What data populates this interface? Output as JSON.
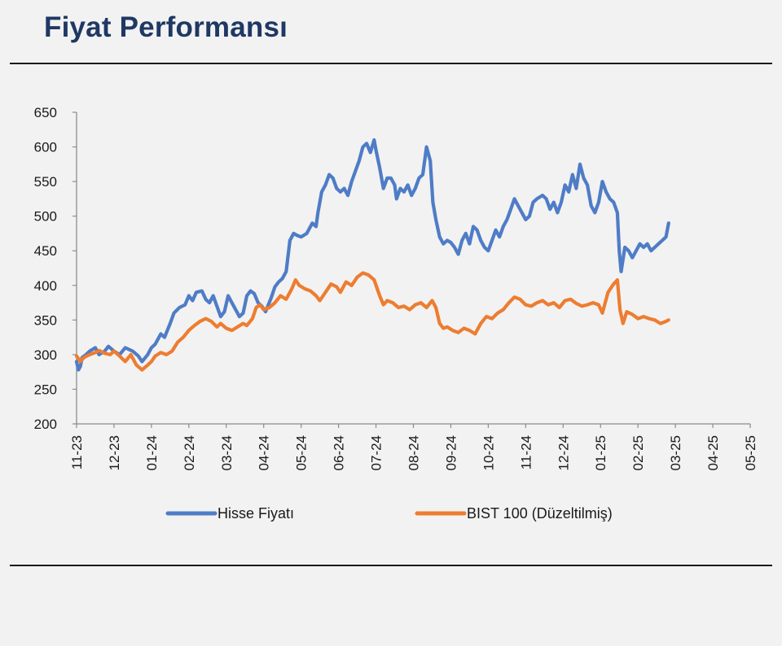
{
  "header": {
    "title": "Fiyat Performansı"
  },
  "chart_data": {
    "type": "line",
    "title": "",
    "xlabel": "",
    "ylabel": "",
    "ylim": [
      200,
      650
    ],
    "yticks": [
      200,
      250,
      300,
      350,
      400,
      450,
      500,
      550,
      600,
      650
    ],
    "xticks": [
      "11-23",
      "12-23",
      "01-24",
      "02-24",
      "03-24",
      "04-24",
      "05-24",
      "06-24",
      "07-24",
      "08-24",
      "09-24",
      "10-24",
      "11-24",
      "12-24",
      "01-25",
      "02-25",
      "03-25",
      "04-25",
      "05-25"
    ],
    "grid": false,
    "legend_position": "bottom",
    "series": [
      {
        "name": "Hisse Fiyatı",
        "color": "#4f7cc6",
        "points": [
          [
            0,
            290
          ],
          [
            0.05,
            278
          ],
          [
            0.1,
            283
          ],
          [
            0.15,
            296
          ],
          [
            0.25,
            300
          ],
          [
            0.35,
            305
          ],
          [
            0.5,
            310
          ],
          [
            0.6,
            300
          ],
          [
            0.75,
            305
          ],
          [
            0.85,
            312
          ],
          [
            1.0,
            305
          ],
          [
            1.15,
            300
          ],
          [
            1.3,
            310
          ],
          [
            1.5,
            305
          ],
          [
            1.65,
            298
          ],
          [
            1.75,
            290
          ],
          [
            1.9,
            300
          ],
          [
            2.0,
            310
          ],
          [
            2.1,
            315
          ],
          [
            2.25,
            330
          ],
          [
            2.35,
            325
          ],
          [
            2.5,
            345
          ],
          [
            2.6,
            360
          ],
          [
            2.75,
            368
          ],
          [
            2.9,
            372
          ],
          [
            3.0,
            385
          ],
          [
            3.1,
            378
          ],
          [
            3.2,
            390
          ],
          [
            3.35,
            392
          ],
          [
            3.45,
            380
          ],
          [
            3.55,
            375
          ],
          [
            3.65,
            385
          ],
          [
            3.75,
            370
          ],
          [
            3.85,
            355
          ],
          [
            3.95,
            362
          ],
          [
            4.05,
            385
          ],
          [
            4.15,
            375
          ],
          [
            4.25,
            365
          ],
          [
            4.35,
            355
          ],
          [
            4.45,
            360
          ],
          [
            4.55,
            385
          ],
          [
            4.65,
            392
          ],
          [
            4.75,
            388
          ],
          [
            4.85,
            375
          ],
          [
            4.95,
            370
          ],
          [
            5.05,
            362
          ],
          [
            5.2,
            382
          ],
          [
            5.3,
            398
          ],
          [
            5.4,
            405
          ],
          [
            5.5,
            410
          ],
          [
            5.6,
            420
          ],
          [
            5.7,
            465
          ],
          [
            5.8,
            475
          ],
          [
            5.9,
            472
          ],
          [
            6.0,
            470
          ],
          [
            6.15,
            475
          ],
          [
            6.3,
            490
          ],
          [
            6.4,
            485
          ],
          [
            6.45,
            505
          ],
          [
            6.55,
            535
          ],
          [
            6.65,
            545
          ],
          [
            6.75,
            560
          ],
          [
            6.85,
            555
          ],
          [
            6.95,
            540
          ],
          [
            7.05,
            535
          ],
          [
            7.15,
            540
          ],
          [
            7.25,
            530
          ],
          [
            7.35,
            550
          ],
          [
            7.45,
            565
          ],
          [
            7.55,
            580
          ],
          [
            7.65,
            600
          ],
          [
            7.75,
            605
          ],
          [
            7.85,
            592
          ],
          [
            7.95,
            610
          ],
          [
            8.0,
            595
          ],
          [
            8.1,
            570
          ],
          [
            8.2,
            540
          ],
          [
            8.3,
            555
          ],
          [
            8.4,
            555
          ],
          [
            8.5,
            545
          ],
          [
            8.55,
            525
          ],
          [
            8.65,
            540
          ],
          [
            8.75,
            535
          ],
          [
            8.85,
            545
          ],
          [
            8.95,
            530
          ],
          [
            9.05,
            540
          ],
          [
            9.15,
            555
          ],
          [
            9.25,
            560
          ],
          [
            9.35,
            600
          ],
          [
            9.45,
            580
          ],
          [
            9.52,
            520
          ],
          [
            9.6,
            495
          ],
          [
            9.7,
            470
          ],
          [
            9.8,
            460
          ],
          [
            9.9,
            465
          ],
          [
            10.0,
            462
          ],
          [
            10.1,
            455
          ],
          [
            10.2,
            445
          ],
          [
            10.3,
            465
          ],
          [
            10.4,
            475
          ],
          [
            10.5,
            460
          ],
          [
            10.6,
            485
          ],
          [
            10.7,
            480
          ],
          [
            10.8,
            465
          ],
          [
            10.9,
            455
          ],
          [
            11.0,
            450
          ],
          [
            11.1,
            465
          ],
          [
            11.2,
            480
          ],
          [
            11.3,
            470
          ],
          [
            11.4,
            485
          ],
          [
            11.5,
            495
          ],
          [
            11.6,
            510
          ],
          [
            11.7,
            525
          ],
          [
            11.8,
            515
          ],
          [
            11.9,
            505
          ],
          [
            12.0,
            495
          ],
          [
            12.1,
            500
          ],
          [
            12.2,
            520
          ],
          [
            12.3,
            525
          ],
          [
            12.45,
            530
          ],
          [
            12.55,
            525
          ],
          [
            12.65,
            510
          ],
          [
            12.75,
            520
          ],
          [
            12.85,
            505
          ],
          [
            12.95,
            520
          ],
          [
            13.05,
            545
          ],
          [
            13.15,
            535
          ],
          [
            13.25,
            560
          ],
          [
            13.35,
            540
          ],
          [
            13.45,
            575
          ],
          [
            13.55,
            555
          ],
          [
            13.65,
            545
          ],
          [
            13.75,
            515
          ],
          [
            13.85,
            505
          ],
          [
            13.95,
            520
          ],
          [
            14.05,
            550
          ],
          [
            14.15,
            535
          ],
          [
            14.25,
            525
          ],
          [
            14.35,
            520
          ],
          [
            14.45,
            505
          ],
          [
            14.5,
            450
          ],
          [
            14.55,
            420
          ],
          [
            14.65,
            455
          ],
          [
            14.75,
            450
          ],
          [
            14.85,
            440
          ],
          [
            14.95,
            450
          ],
          [
            15.05,
            460
          ],
          [
            15.15,
            455
          ],
          [
            15.25,
            460
          ],
          [
            15.35,
            450
          ],
          [
            15.45,
            455
          ],
          [
            15.55,
            460
          ],
          [
            15.65,
            465
          ],
          [
            15.75,
            470
          ],
          [
            15.82,
            490
          ]
        ]
      },
      {
        "name": "BIST 100 (Düzeltilmiş)",
        "color": "#ed7d31",
        "points": [
          [
            0,
            298
          ],
          [
            0.1,
            290
          ],
          [
            0.2,
            296
          ],
          [
            0.35,
            300
          ],
          [
            0.5,
            303
          ],
          [
            0.6,
            306
          ],
          [
            0.75,
            302
          ],
          [
            0.9,
            300
          ],
          [
            1.0,
            305
          ],
          [
            1.15,
            298
          ],
          [
            1.3,
            290
          ],
          [
            1.45,
            300
          ],
          [
            1.6,
            285
          ],
          [
            1.75,
            278
          ],
          [
            1.9,
            285
          ],
          [
            2.0,
            290
          ],
          [
            2.1,
            298
          ],
          [
            2.25,
            303
          ],
          [
            2.4,
            300
          ],
          [
            2.55,
            305
          ],
          [
            2.7,
            318
          ],
          [
            2.85,
            325
          ],
          [
            3.0,
            335
          ],
          [
            3.15,
            342
          ],
          [
            3.3,
            348
          ],
          [
            3.45,
            352
          ],
          [
            3.6,
            348
          ],
          [
            3.75,
            340
          ],
          [
            3.85,
            345
          ],
          [
            4.0,
            338
          ],
          [
            4.15,
            335
          ],
          [
            4.3,
            340
          ],
          [
            4.45,
            345
          ],
          [
            4.55,
            342
          ],
          [
            4.7,
            352
          ],
          [
            4.8,
            368
          ],
          [
            4.9,
            372
          ],
          [
            5.0,
            365
          ],
          [
            5.15,
            368
          ],
          [
            5.3,
            375
          ],
          [
            5.45,
            385
          ],
          [
            5.6,
            380
          ],
          [
            5.75,
            395
          ],
          [
            5.85,
            408
          ],
          [
            5.95,
            400
          ],
          [
            6.1,
            395
          ],
          [
            6.25,
            392
          ],
          [
            6.4,
            385
          ],
          [
            6.5,
            378
          ],
          [
            6.65,
            390
          ],
          [
            6.8,
            402
          ],
          [
            6.95,
            398
          ],
          [
            7.05,
            390
          ],
          [
            7.2,
            405
          ],
          [
            7.35,
            400
          ],
          [
            7.5,
            412
          ],
          [
            7.65,
            418
          ],
          [
            7.8,
            415
          ],
          [
            7.95,
            408
          ],
          [
            8.1,
            385
          ],
          [
            8.2,
            372
          ],
          [
            8.3,
            378
          ],
          [
            8.45,
            375
          ],
          [
            8.6,
            368
          ],
          [
            8.75,
            370
          ],
          [
            8.9,
            365
          ],
          [
            9.05,
            372
          ],
          [
            9.2,
            375
          ],
          [
            9.35,
            368
          ],
          [
            9.5,
            378
          ],
          [
            9.6,
            368
          ],
          [
            9.7,
            345
          ],
          [
            9.8,
            338
          ],
          [
            9.9,
            340
          ],
          [
            10.05,
            335
          ],
          [
            10.2,
            332
          ],
          [
            10.35,
            338
          ],
          [
            10.5,
            335
          ],
          [
            10.65,
            330
          ],
          [
            10.8,
            345
          ],
          [
            10.95,
            355
          ],
          [
            11.1,
            352
          ],
          [
            11.25,
            360
          ],
          [
            11.4,
            365
          ],
          [
            11.55,
            375
          ],
          [
            11.7,
            383
          ],
          [
            11.85,
            380
          ],
          [
            12.0,
            372
          ],
          [
            12.15,
            370
          ],
          [
            12.3,
            375
          ],
          [
            12.45,
            378
          ],
          [
            12.6,
            372
          ],
          [
            12.75,
            375
          ],
          [
            12.9,
            368
          ],
          [
            13.05,
            378
          ],
          [
            13.2,
            380
          ],
          [
            13.35,
            374
          ],
          [
            13.5,
            370
          ],
          [
            13.65,
            372
          ],
          [
            13.8,
            375
          ],
          [
            13.95,
            372
          ],
          [
            14.05,
            360
          ],
          [
            14.2,
            390
          ],
          [
            14.35,
            402
          ],
          [
            14.45,
            408
          ],
          [
            14.52,
            365
          ],
          [
            14.6,
            345
          ],
          [
            14.7,
            362
          ],
          [
            14.85,
            358
          ],
          [
            15.0,
            352
          ],
          [
            15.15,
            355
          ],
          [
            15.3,
            352
          ],
          [
            15.45,
            350
          ],
          [
            15.6,
            345
          ],
          [
            15.75,
            348
          ],
          [
            15.82,
            350
          ]
        ]
      }
    ]
  }
}
